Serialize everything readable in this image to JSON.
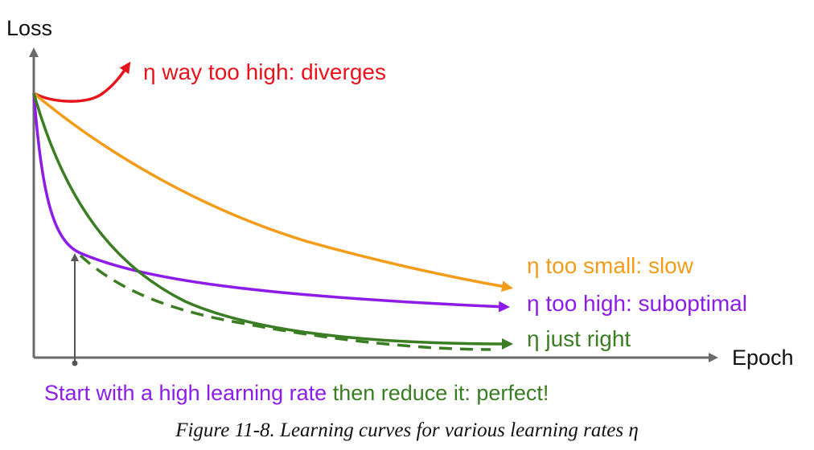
{
  "chart_data": {
    "type": "line",
    "xlabel": "Epoch",
    "ylabel": "Loss",
    "series": [
      {
        "name": "η way too high: diverges",
        "color": "#e8141b"
      },
      {
        "name": "η too small: slow",
        "color": "#f39c1a"
      },
      {
        "name": "η too high: suboptimal",
        "color": "#8e1ce8"
      },
      {
        "name": "η just right",
        "color": "#3a7d22"
      }
    ],
    "annotations": {
      "schedule_note_part1": "Start with a high learning rate",
      "schedule_note_part2": "then reduce it: perfect!"
    }
  },
  "caption": "Figure 11-8. Learning curves for various learning rates η",
  "colors": {
    "axis": "#6a6a6a",
    "schedule_curve": "#3a7d22",
    "purple": "#8e1ce8",
    "green": "#3a7d22"
  }
}
